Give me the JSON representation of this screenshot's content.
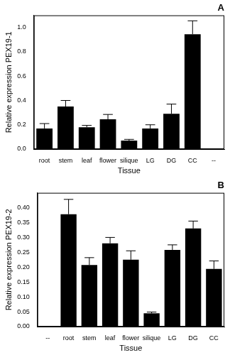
{
  "chart_data": [
    {
      "type": "bar",
      "title": "A",
      "y_label": "Relative expression PEX19-1",
      "x_label": "Tissue",
      "categories": [
        "root",
        "stem",
        "leaf",
        "flower",
        "silique",
        "LG",
        "DG",
        "CC",
        "--"
      ],
      "values": [
        0.17,
        0.35,
        0.18,
        0.245,
        0.07,
        0.17,
        0.29,
        0.945,
        null
      ],
      "errors": [
        0.04,
        0.05,
        0.015,
        0.04,
        0.01,
        0.03,
        0.08,
        0.11,
        null
      ],
      "color": "#000000",
      "ylim": [
        0,
        1.1
      ],
      "yticks": [
        {
          "value": 0,
          "label": "0.0"
        },
        {
          "value": 0.2,
          "label": "0.2"
        },
        {
          "value": 0.4,
          "label": "0.4"
        },
        {
          "value": 0.6,
          "label": "0.6"
        },
        {
          "value": 0.8,
          "label": "0.8"
        },
        {
          "value": 1,
          "label": "1.0"
        }
      ],
      "grid": false
    },
    {
      "type": "bar",
      "title": "B",
      "y_label": "Relative expression PEX19-2",
      "x_label": "Tissue",
      "categories": [
        "--",
        "root",
        "stem",
        "leaf",
        "flower",
        "silique",
        "LG",
        "DG",
        "CC"
      ],
      "values": [
        null,
        0.378,
        0.207,
        0.28,
        0.225,
        0.045,
        0.258,
        0.33,
        0.194
      ],
      "errors": [
        null,
        0.05,
        0.025,
        0.02,
        0.03,
        0.004,
        0.017,
        0.025,
        0.027
      ],
      "color": "#000000",
      "ylim": [
        0,
        0.45
      ],
      "yticks": [
        {
          "value": 0,
          "label": "0.00"
        },
        {
          "value": 0.05,
          "label": "0.05"
        },
        {
          "value": 0.1,
          "label": "0.10"
        },
        {
          "value": 0.15,
          "label": "0.15"
        },
        {
          "value": 0.2,
          "label": "0.20"
        },
        {
          "value": 0.25,
          "label": "0.25"
        },
        {
          "value": 0.3,
          "label": "0.30"
        },
        {
          "value": 0.35,
          "label": "0.35"
        },
        {
          "value": 0.4,
          "label": "0.40"
        }
      ],
      "grid": false
    }
  ]
}
